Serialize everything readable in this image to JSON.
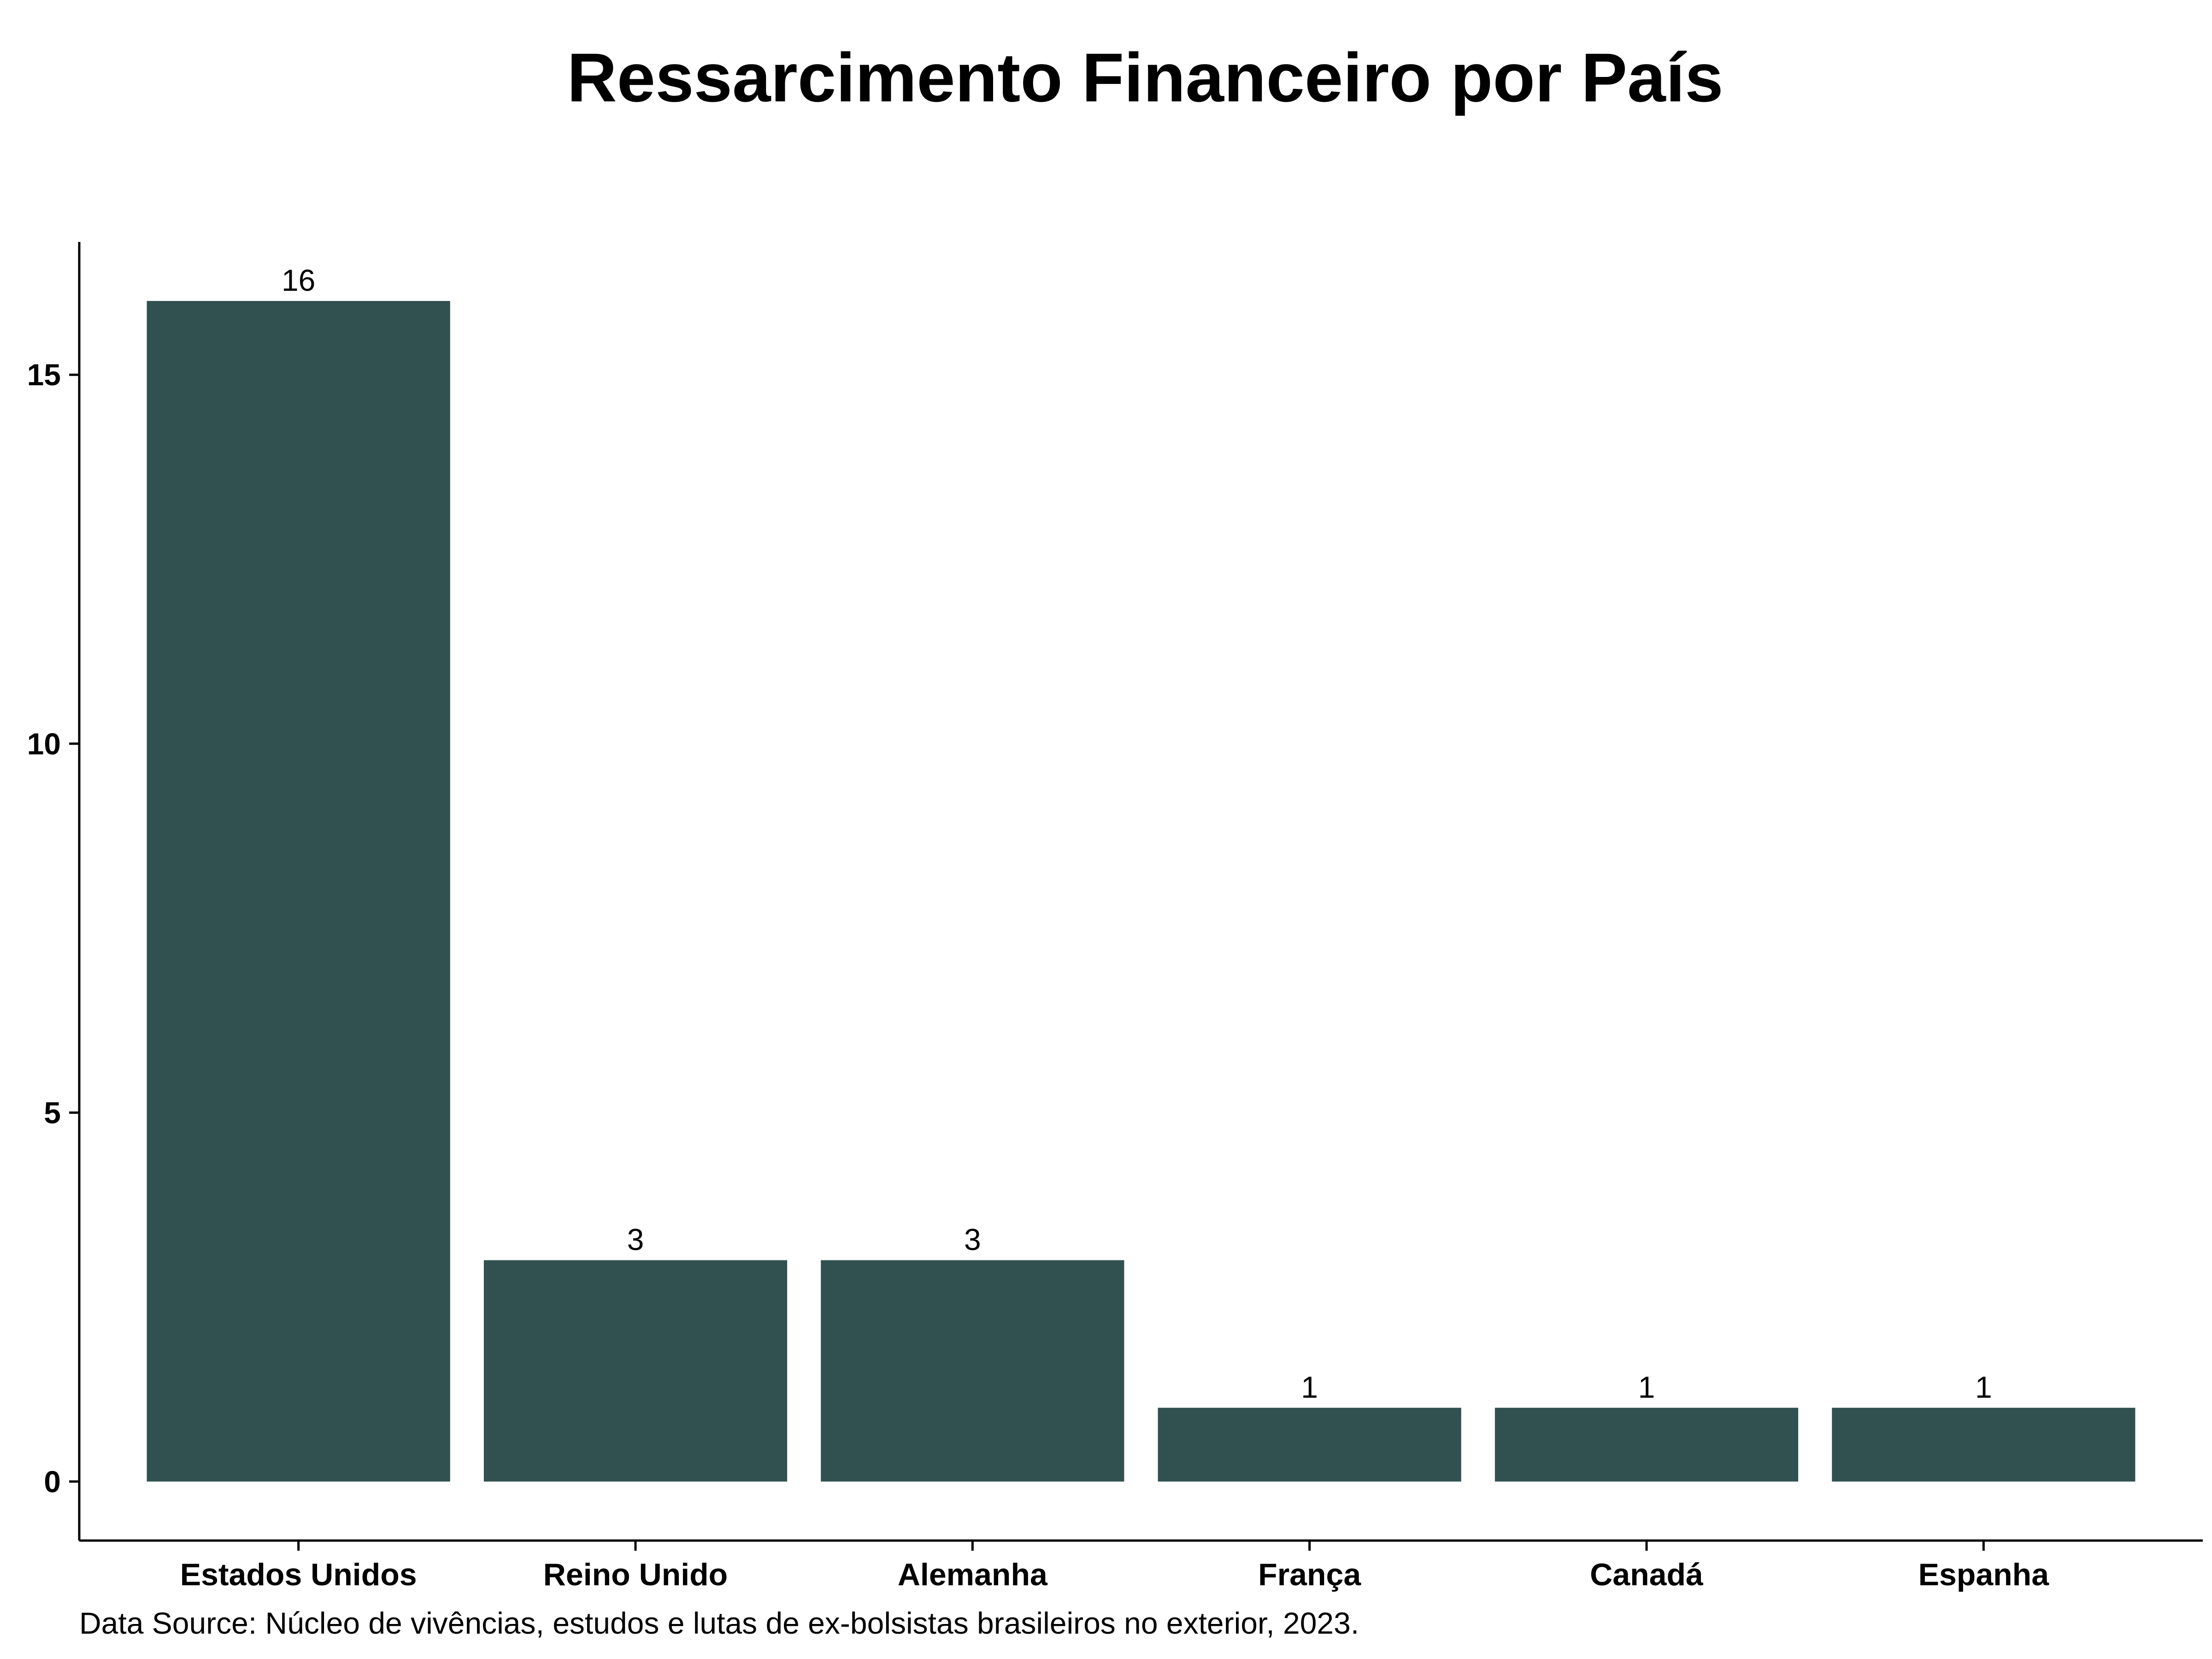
{
  "chart_data": {
    "type": "bar",
    "title": "Ressarcimento Financeiro por País",
    "categories": [
      "Estados Unidos",
      "Reino Unido",
      "Alemanha",
      "França",
      "Canadá",
      "Espanha"
    ],
    "values": [
      16,
      3,
      3,
      1,
      1,
      1
    ],
    "data_labels": [
      "16",
      "3",
      "3",
      "1",
      "1",
      "1"
    ],
    "xlabel": "",
    "ylabel": "",
    "yticks": [
      0,
      5,
      10,
      15
    ],
    "ylim": [
      -0.8,
      16.8
    ],
    "grid": false,
    "legend": "none",
    "bar_color": "#315151",
    "caption": "Data Source: Núcleo de vivências, estudos e lutas de ex-bolsistas brasileiros no exterior, 2023."
  }
}
